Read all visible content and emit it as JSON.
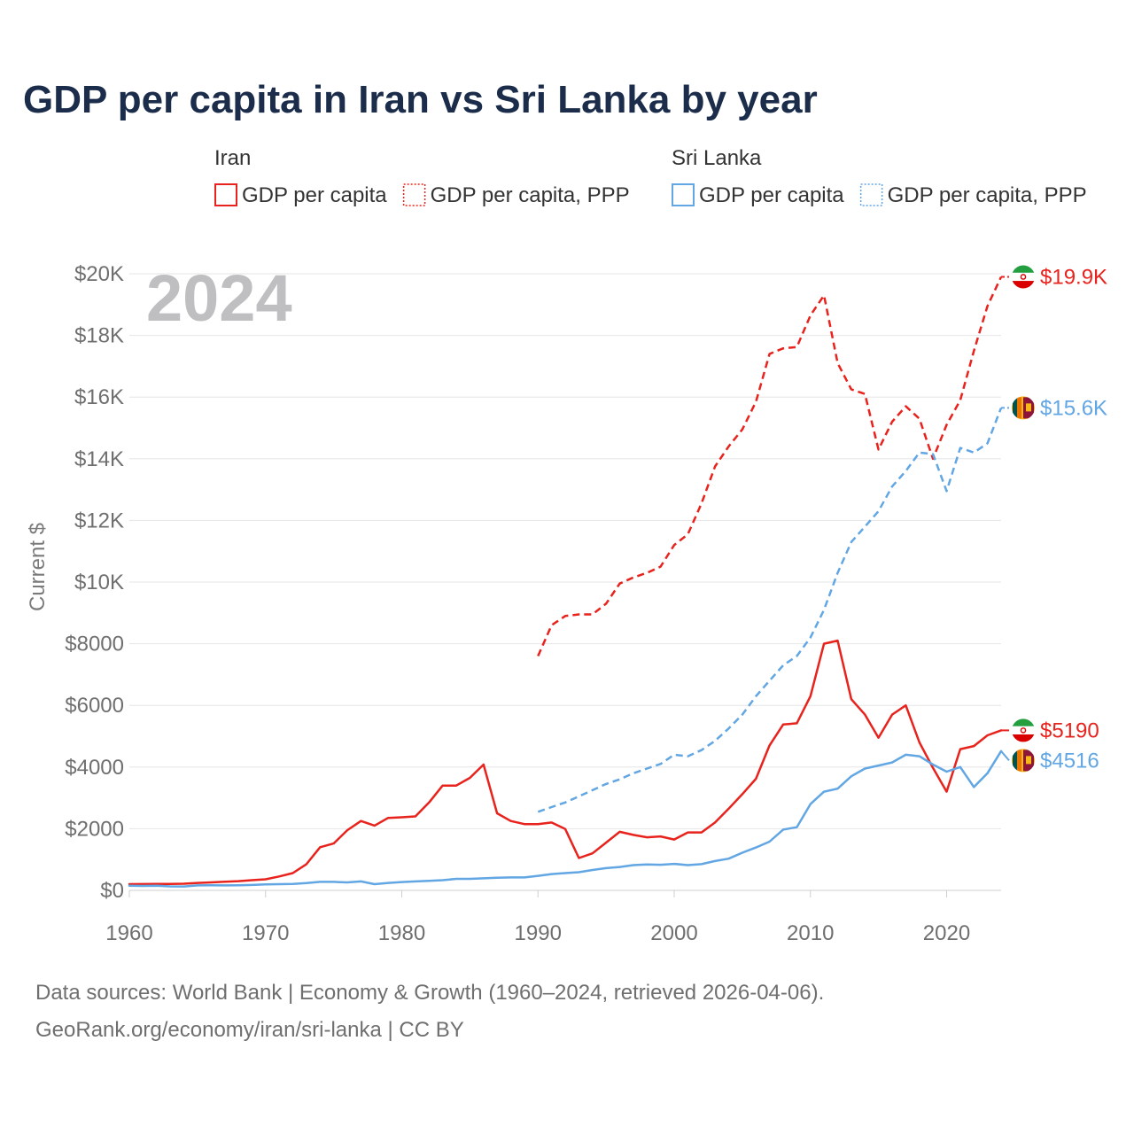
{
  "chart_data": {
    "type": "line",
    "title": "GDP per capita in Iran vs Sri Lanka by year",
    "year_label": "2024",
    "ylabel": "Current $",
    "xlabel": "",
    "xlim": [
      1960,
      2024
    ],
    "ylim": [
      0,
      20000
    ],
    "grid": true,
    "x_ticks": [
      1960,
      1970,
      1980,
      1990,
      2000,
      2010,
      2020
    ],
    "x_tick_labels": [
      "1960",
      "1970",
      "1980",
      "1990",
      "2000",
      "2010",
      "2020"
    ],
    "y_ticks": [
      0,
      2000,
      4000,
      6000,
      8000,
      10000,
      12000,
      14000,
      16000,
      18000,
      20000
    ],
    "y_tick_labels": [
      "$0",
      "$2000",
      "$4000",
      "$6000",
      "$8000",
      "$10K",
      "$12K",
      "$14K",
      "$16K",
      "$18K",
      "$20K"
    ],
    "legend": {
      "groups": [
        {
          "country": "Iran",
          "items": [
            {
              "label": "GDP per capita",
              "series": "iran_gdp"
            },
            {
              "label": "GDP per capita, PPP",
              "series": "iran_ppp"
            }
          ]
        },
        {
          "country": "Sri Lanka",
          "items": [
            {
              "label": "GDP per capita",
              "series": "sl_gdp"
            },
            {
              "label": "GDP per capita, PPP",
              "series": "sl_ppp"
            }
          ]
        }
      ]
    },
    "series": [
      {
        "id": "iran_ppp",
        "name": "Iran GDP per capita, PPP",
        "color": "#e8221c",
        "dashed": true,
        "flag": "iran-flag-icon",
        "end_label": "$19.9K",
        "start_year": 1990,
        "values": [
          7600,
          8600,
          8900,
          8950,
          8950,
          9300,
          9950,
          10150,
          10300,
          10500,
          11200,
          11550,
          12550,
          13750,
          14400,
          14950,
          15850,
          17400,
          17580,
          17620,
          18650,
          19300,
          17100,
          16250,
          16100,
          14300,
          15200,
          15700,
          15300,
          14000,
          15100,
          15900,
          17500,
          18950,
          19900
        ]
      },
      {
        "id": "sl_ppp",
        "name": "Sri Lanka GDP per capita, PPP",
        "color": "#62a6e3",
        "dashed": true,
        "flag": "sri-lanka-flag-icon",
        "end_label": "$15.6K",
        "start_year": 1990,
        "values": [
          2550,
          2700,
          2850,
          3050,
          3250,
          3450,
          3600,
          3800,
          3950,
          4100,
          4400,
          4350,
          4550,
          4850,
          5250,
          5700,
          6300,
          6800,
          7300,
          7600,
          8200,
          9100,
          10300,
          11300,
          11800,
          12300,
          13100,
          13600,
          14200,
          14150,
          12950,
          14350,
          14200,
          14500,
          15650
        ]
      },
      {
        "id": "iran_gdp",
        "name": "Iran GDP per capita",
        "color": "#e8221c",
        "dashed": false,
        "flag": "iran-flag-icon",
        "end_label": "$5190",
        "start_year": 1960,
        "values": [
          200,
          205,
          210,
          210,
          215,
          240,
          260,
          280,
          300,
          330,
          360,
          450,
          560,
          850,
          1400,
          1520,
          1950,
          2250,
          2100,
          2350,
          2370,
          2400,
          2850,
          3400,
          3400,
          3650,
          4080,
          2500,
          2250,
          2150,
          2150,
          2200,
          1990,
          1050,
          1200,
          1550,
          1900,
          1800,
          1720,
          1750,
          1650,
          1880,
          1880,
          2200,
          2650,
          3120,
          3620,
          4700,
          5380,
          5420,
          6300,
          8000,
          8100,
          6200,
          5700,
          4950,
          5700,
          6000,
          4800,
          3970,
          3200,
          4580,
          4680,
          5030,
          5190
        ]
      },
      {
        "id": "sl_gdp",
        "name": "Sri Lanka GDP per capita",
        "color": "#62a6e3",
        "dashed": false,
        "flag": "sri-lanka-flag-icon",
        "end_label": "$4516",
        "start_year": 1960,
        "values": [
          150,
          145,
          150,
          130,
          125,
          160,
          165,
          160,
          165,
          175,
          195,
          200,
          210,
          235,
          275,
          275,
          260,
          290,
          200,
          240,
          270,
          290,
          310,
          330,
          375,
          375,
          390,
          410,
          420,
          420,
          470,
          530,
          560,
          590,
          660,
          720,
          760,
          820,
          840,
          830,
          860,
          820,
          850,
          950,
          1030,
          1220,
          1390,
          1580,
          1970,
          2050,
          2800,
          3200,
          3300,
          3700,
          3950,
          4050,
          4150,
          4400,
          4350,
          4080,
          3850,
          4000,
          3350,
          3800,
          4516
        ]
      }
    ]
  },
  "sources": [
    "Data sources: World Bank | Economy & Growth (1960–2024, retrieved 2026-04-06).",
    "GeoRank.org/economy/iran/sri-lanka | CC BY"
  ]
}
